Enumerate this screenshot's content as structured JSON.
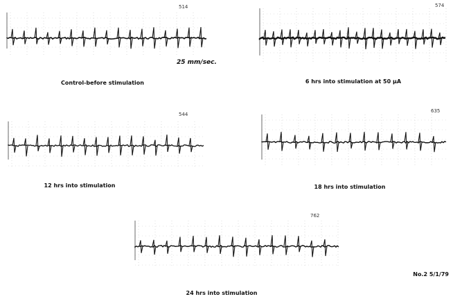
{
  "panels": [
    {
      "number": "514",
      "scale": "25 mm/sec.",
      "caption": "Control-before stimulation"
    },
    {
      "number": "574",
      "caption": "6 hrs into stimulation at 50 μA"
    },
    {
      "number": "544",
      "caption": "12 hrs into stimulation"
    },
    {
      "number": "635",
      "caption": "18 hrs  into stimulation"
    },
    {
      "number": "762",
      "caption": "24 hrs into stimulation"
    }
  ],
  "footnote": "No.2 5/1/79"
}
